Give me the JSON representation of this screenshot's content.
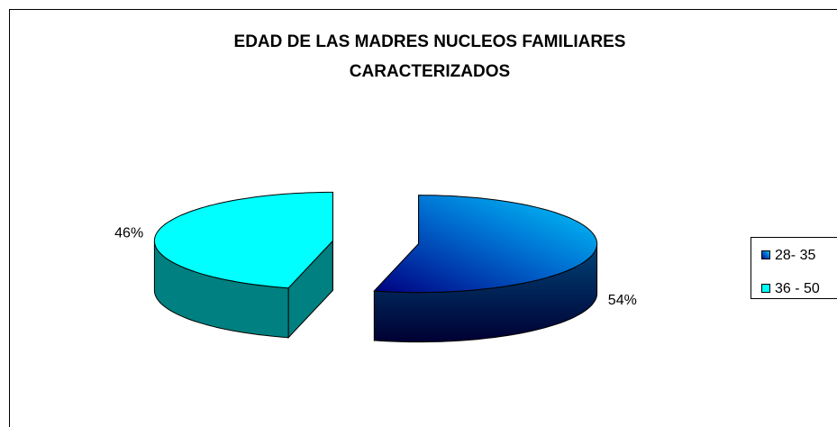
{
  "chart_data": {
    "type": "pie3d",
    "title": [
      "EDAD DE LAS MADRES NUCLEOS FAMILIARES",
      "CARACTERIZADOS"
    ],
    "categories": [
      "28- 35",
      "36 - 50"
    ],
    "values": [
      54,
      46
    ],
    "value_labels": [
      "54%",
      "46%"
    ],
    "colors": [
      "#0066cc",
      "#00ffff"
    ],
    "legend": "right"
  }
}
